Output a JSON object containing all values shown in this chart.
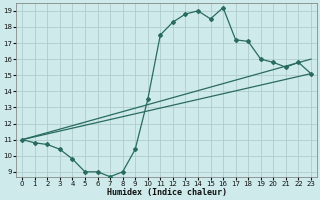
{
  "xlabel": "Humidex (Indice chaleur)",
  "bg_color": "#ceeaea",
  "grid_color": "#b0cccc",
  "line_color": "#2a6b60",
  "xlim": [
    -0.5,
    23.5
  ],
  "ylim": [
    8.7,
    19.5
  ],
  "xticks": [
    0,
    1,
    2,
    3,
    4,
    5,
    6,
    7,
    8,
    9,
    10,
    11,
    12,
    13,
    14,
    15,
    16,
    17,
    18,
    19,
    20,
    21,
    22,
    23
  ],
  "yticks": [
    9,
    10,
    11,
    12,
    13,
    14,
    15,
    16,
    17,
    18,
    19
  ],
  "line1_x": [
    0,
    1,
    2,
    3,
    4,
    5,
    6,
    7,
    8,
    9,
    10,
    11,
    12,
    13,
    14,
    15,
    16,
    17,
    18,
    19,
    20,
    21,
    22,
    23
  ],
  "line1_y": [
    11,
    10.8,
    10.7,
    10.4,
    9.8,
    9.0,
    9.0,
    8.7,
    9.0,
    10.4,
    13.5,
    17.5,
    18.3,
    18.8,
    19.0,
    18.5,
    19.2,
    17.2,
    17.1,
    16.0,
    15.8,
    15.5,
    15.8,
    15.1
  ],
  "line2_x": [
    0,
    23
  ],
  "line2_y": [
    11.0,
    16.0
  ],
  "line3_x": [
    0,
    23
  ],
  "line3_y": [
    11.0,
    15.1
  ]
}
